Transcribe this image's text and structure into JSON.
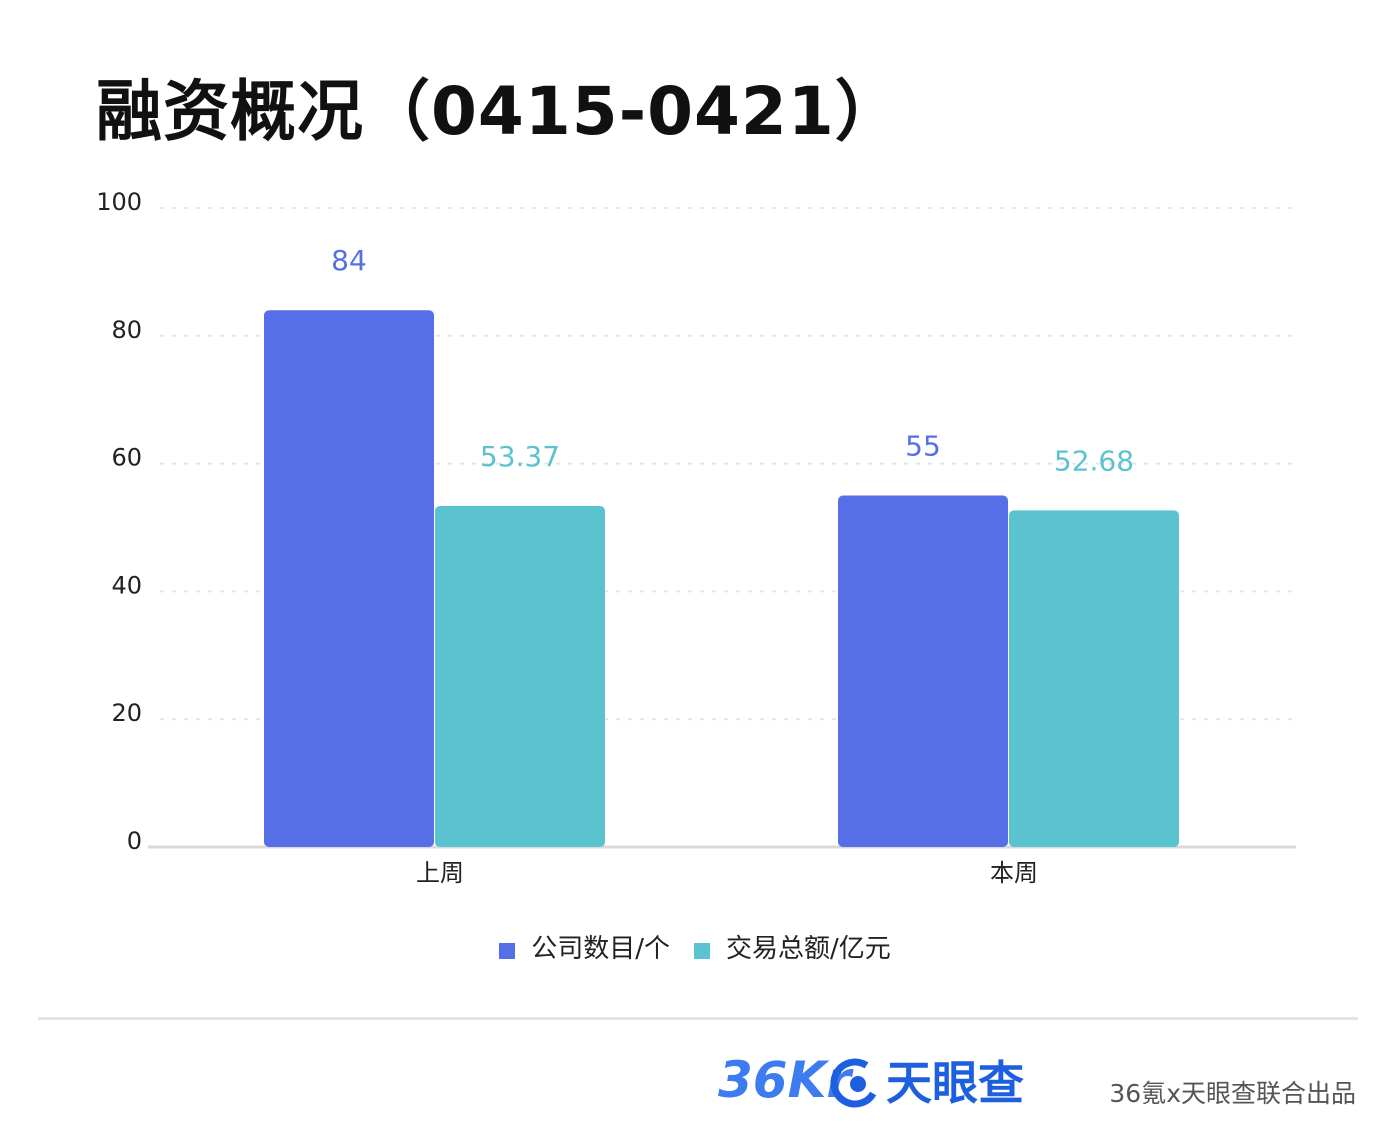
{
  "title": "融资概况（0415-0421）",
  "colors": {
    "series1": "#566fe6",
    "series2": "#5bc3d0",
    "axis": "#d9d9d9",
    "grid": "#e6e6e6"
  },
  "chart_data": {
    "type": "bar",
    "categories": [
      "上周",
      "本周"
    ],
    "series": [
      {
        "name": "公司数目/个",
        "values": [
          84,
          55
        ],
        "labels": [
          "84",
          "55"
        ]
      },
      {
        "name": "交易总额/亿元",
        "values": [
          53.37,
          52.68
        ],
        "labels": [
          "53.37",
          "52.68"
        ]
      }
    ],
    "ylim": [
      0,
      100
    ],
    "yticks": [
      "0",
      "20",
      "40",
      "60",
      "80",
      "100"
    ],
    "grid": true,
    "legend": "bottom-center"
  },
  "footer": {
    "logo_36kr": "36Kr",
    "logo_tianyancha": "天眼查",
    "credit": "36氪x天眼查联合出品"
  }
}
